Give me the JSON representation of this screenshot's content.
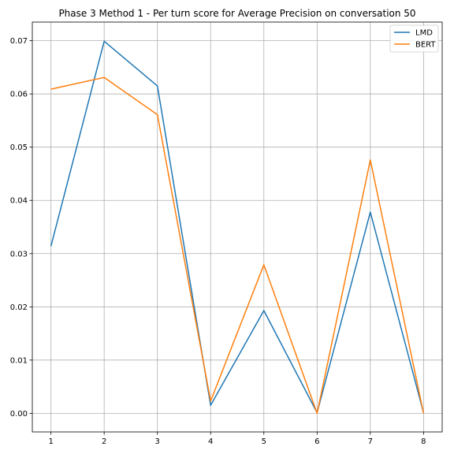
{
  "chart_data": {
    "type": "line",
    "title": "Phase 3 Method 1 - Per turn score for Average Precision on conversation 50",
    "xlabel": "",
    "ylabel": "",
    "x": [
      1,
      2,
      3,
      4,
      5,
      6,
      7,
      8
    ],
    "xticks": [
      "1",
      "2",
      "3",
      "4",
      "5",
      "6",
      "7",
      "8"
    ],
    "yticks": [
      "0.00",
      "0.01",
      "0.02",
      "0.03",
      "0.04",
      "0.05",
      "0.06",
      "0.07"
    ],
    "ytick_values": [
      0.0,
      0.01,
      0.02,
      0.03,
      0.04,
      0.05,
      0.06,
      0.07
    ],
    "xlim": [
      0.65,
      8.35
    ],
    "ylim": [
      -0.0035,
      0.0735
    ],
    "grid": true,
    "legend_position": "top-right",
    "series": [
      {
        "name": "LMD",
        "color": "#1f77b4",
        "values": [
          0.0314,
          0.0699,
          0.0615,
          0.0015,
          0.0193,
          0.0001,
          0.0378,
          0.0001
        ]
      },
      {
        "name": "BERT",
        "color": "#ff7f0e",
        "values": [
          0.0609,
          0.0631,
          0.0561,
          0.0023,
          0.0279,
          0.0,
          0.0476,
          0.0
        ]
      }
    ]
  }
}
